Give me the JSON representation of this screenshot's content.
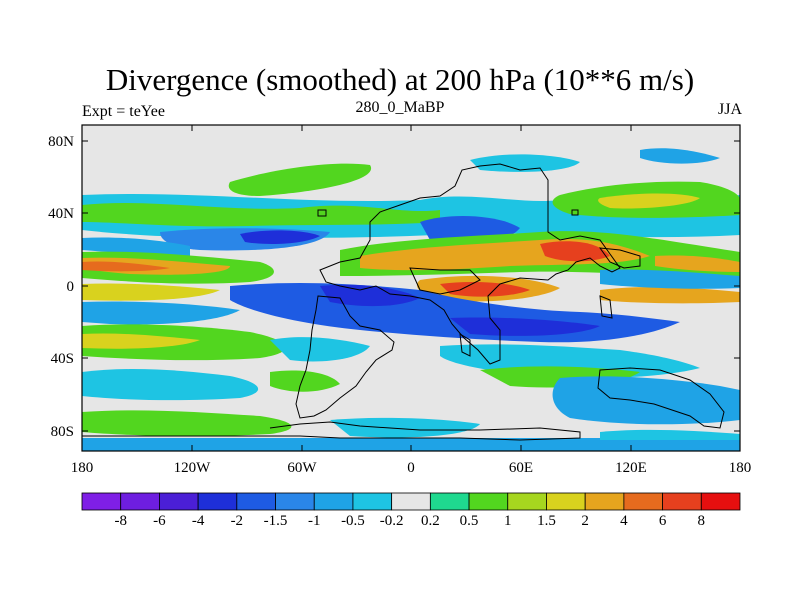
{
  "header": {
    "title": "Divergence (smoothed) at 200 hPa (10**6 m/s)",
    "experiment": "Expt = teYee",
    "time_label": "280_0_MaBP",
    "season": "JJA"
  },
  "map": {
    "lat_labels": [
      "80N",
      "40N",
      "0",
      "40S",
      "80S"
    ],
    "lon_labels": [
      "180",
      "120W",
      "60W",
      "0",
      "60E",
      "120E",
      "180"
    ],
    "background_color": "#e6e6e6"
  },
  "colorbar": {
    "labels": [
      "-8",
      "-6",
      "-4",
      "-2",
      "-1.5",
      "-1",
      "-0.5",
      "-0.2",
      "0.2",
      "0.5",
      "1",
      "1.5",
      "2",
      "4",
      "6",
      "8"
    ],
    "colors": [
      "#7f1fe6",
      "#6e1ee0",
      "#4b1fd6",
      "#1e2fd9",
      "#1e5be3",
      "#2a86e8",
      "#1fa3e6",
      "#1ec4e3",
      "#e6e6e6",
      "#1fd98f",
      "#52d61f",
      "#a6d61f",
      "#d9d21e",
      "#e6a51e",
      "#e66b1e",
      "#e6401e",
      "#e60f0f"
    ]
  }
}
